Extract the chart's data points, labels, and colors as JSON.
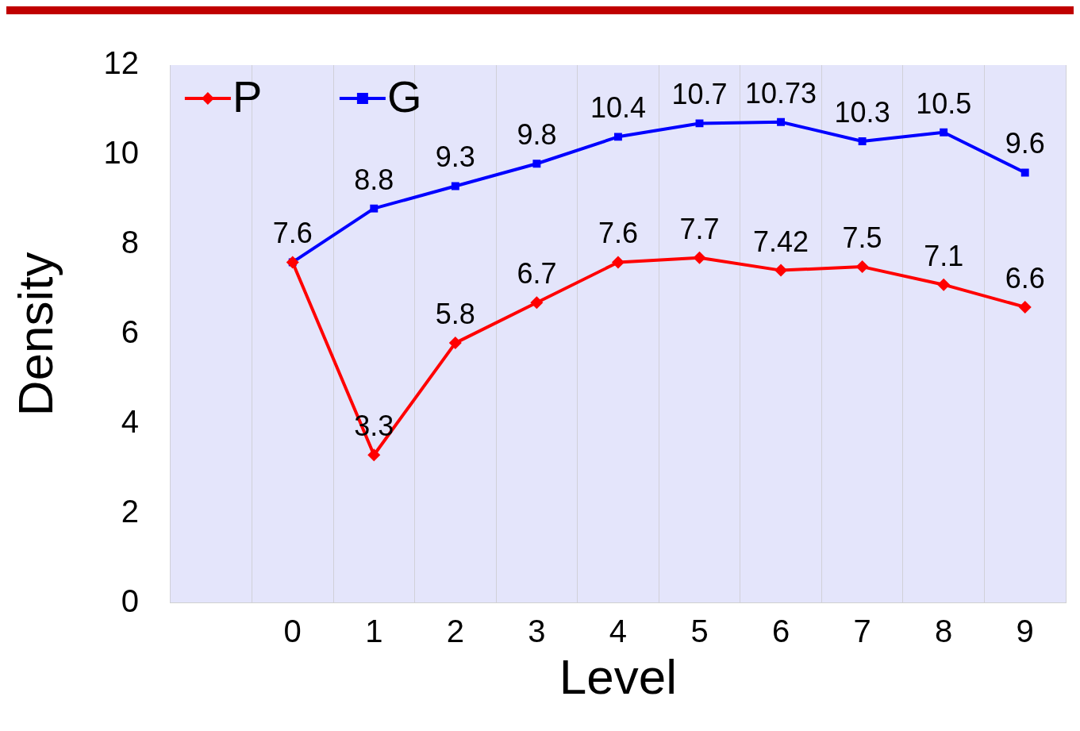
{
  "chart_data": {
    "type": "line",
    "xlabel": "Level",
    "ylabel": "Density",
    "categories": [
      null,
      "0",
      "1",
      "2",
      "3",
      "4",
      "5",
      "6",
      "7",
      "8",
      "9"
    ],
    "series": [
      {
        "name": "P",
        "color": "#ff0000",
        "marker": "diamond",
        "values": [
          null,
          7.6,
          3.3,
          5.8,
          6.7,
          7.6,
          7.7,
          7.42,
          7.5,
          7.1,
          6.6
        ],
        "value_labels": [
          null,
          null,
          "3.3",
          "5.8",
          "6.7",
          "7.6",
          "7.7",
          "7.42",
          "7.5",
          "7.1",
          "6.6"
        ]
      },
      {
        "name": "G",
        "color": "#0000ff",
        "marker": "square",
        "values": [
          null,
          7.6,
          8.8,
          9.3,
          9.8,
          10.4,
          10.7,
          10.73,
          10.3,
          10.5,
          9.6
        ],
        "value_labels": [
          null,
          "7.6",
          "8.8",
          "9.3",
          "9.8",
          "10.4",
          "10.7",
          "10.73",
          "10.3",
          "10.5",
          "9.6"
        ]
      }
    ],
    "ylim": [
      0,
      12
    ],
    "yticks": [
      0,
      2,
      4,
      6,
      8,
      10,
      12
    ],
    "grid": "x",
    "legend": "top left"
  }
}
